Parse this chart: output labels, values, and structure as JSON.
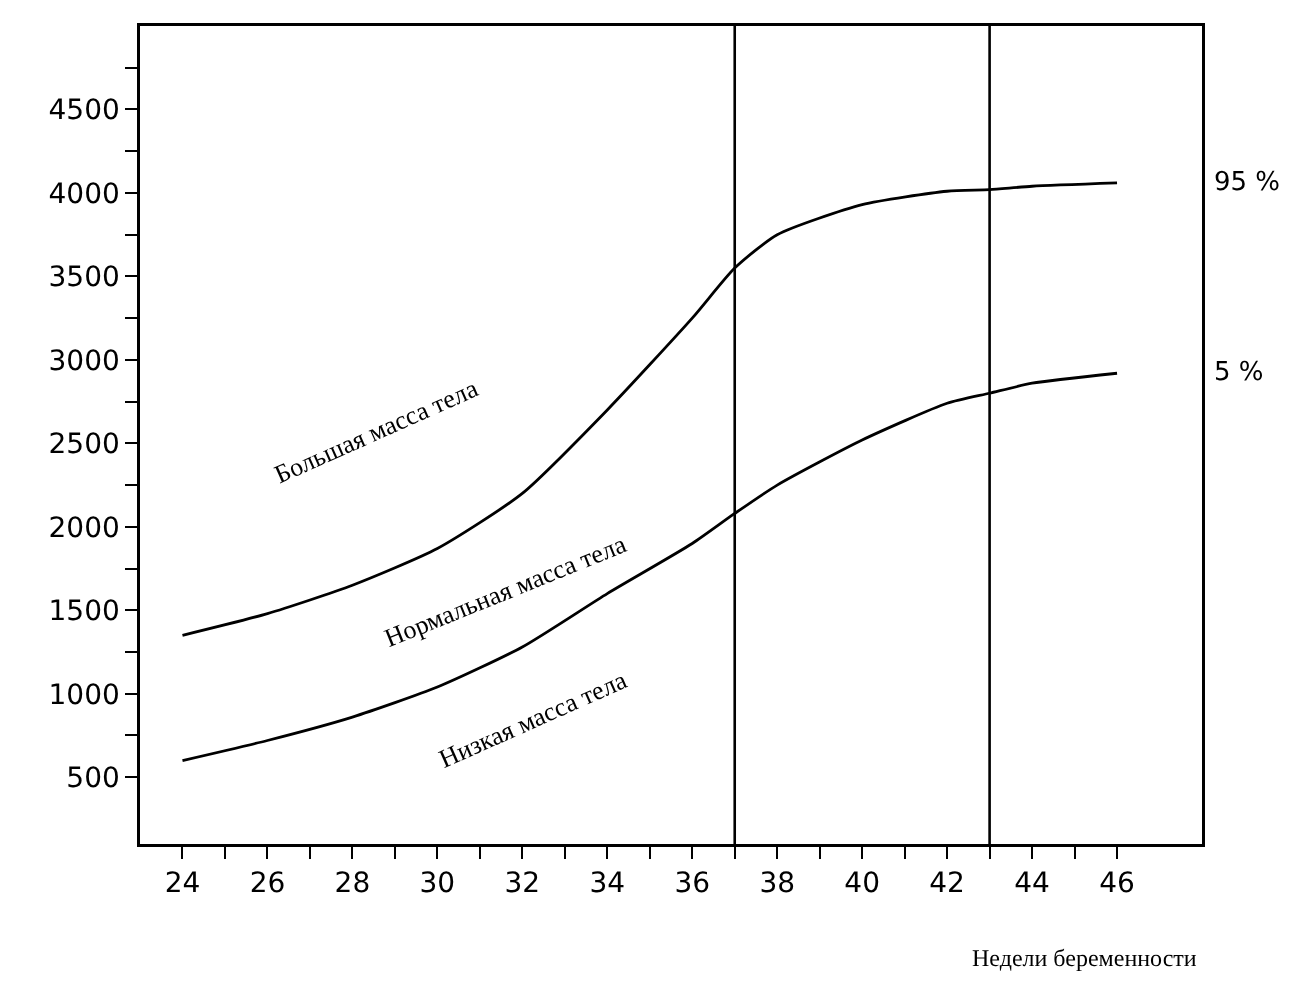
{
  "chart_data": {
    "type": "line",
    "xlabel": "Недели беременности",
    "x": [
      24,
      26,
      28,
      30,
      32,
      34,
      36,
      37,
      38,
      40,
      42,
      43,
      44,
      46
    ],
    "series": [
      {
        "name": "95 %",
        "color": "#000000",
        "values": [
          1350,
          1480,
          1650,
          1870,
          2200,
          2700,
          3250,
          3550,
          3750,
          3930,
          4010,
          4020,
          4040,
          4060
        ]
      },
      {
        "name": "5 %",
        "color": "#000000",
        "values": [
          600,
          720,
          860,
          1040,
          1280,
          1600,
          1900,
          2080,
          2250,
          2520,
          2740,
          2800,
          2860,
          2920
        ]
      }
    ],
    "xlim": [
      23,
      48
    ],
    "xticks": [
      24,
      {
        "value": 25,
        "label": null
      },
      26,
      {
        "value": 27,
        "label": null
      },
      28,
      {
        "value": 29,
        "label": null
      },
      30,
      {
        "value": 31,
        "label": null
      },
      32,
      {
        "value": 33,
        "label": null
      },
      34,
      {
        "value": 35,
        "label": null
      },
      36,
      {
        "value": 37,
        "label": null
      },
      38,
      {
        "value": 39,
        "label": null
      },
      40,
      {
        "value": 41,
        "label": null
      },
      42,
      {
        "value": 43,
        "label": null
      },
      44,
      {
        "value": 45,
        "label": null
      },
      46
    ],
    "ylim": [
      100,
      5000
    ],
    "yticks": [
      500,
      {
        "value": 750,
        "label": null
      },
      1000,
      {
        "value": 1250,
        "label": null
      },
      1500,
      {
        "value": 1750,
        "label": null
      },
      2000,
      {
        "value": 2250,
        "label": null
      },
      2500,
      {
        "value": 2750,
        "label": null
      },
      3000,
      {
        "value": 3250,
        "label": null
      },
      3500,
      {
        "value": 3750,
        "label": null
      },
      4000,
      {
        "value": 4250,
        "label": null
      },
      4500,
      {
        "value": 4750,
        "label": null
      }
    ],
    "ref_lines": [
      {
        "axis": "x",
        "value": 37,
        "label": null,
        "color": "#000000"
      },
      {
        "axis": "x",
        "value": 43,
        "label": null,
        "color": "#000000"
      }
    ],
    "annotations": [
      "Большая масса тела",
      "Нормальная масса тела",
      "Низкая масса тела"
    ],
    "grid": false,
    "legend": false,
    "marker": "none",
    "line_style": "solid"
  }
}
